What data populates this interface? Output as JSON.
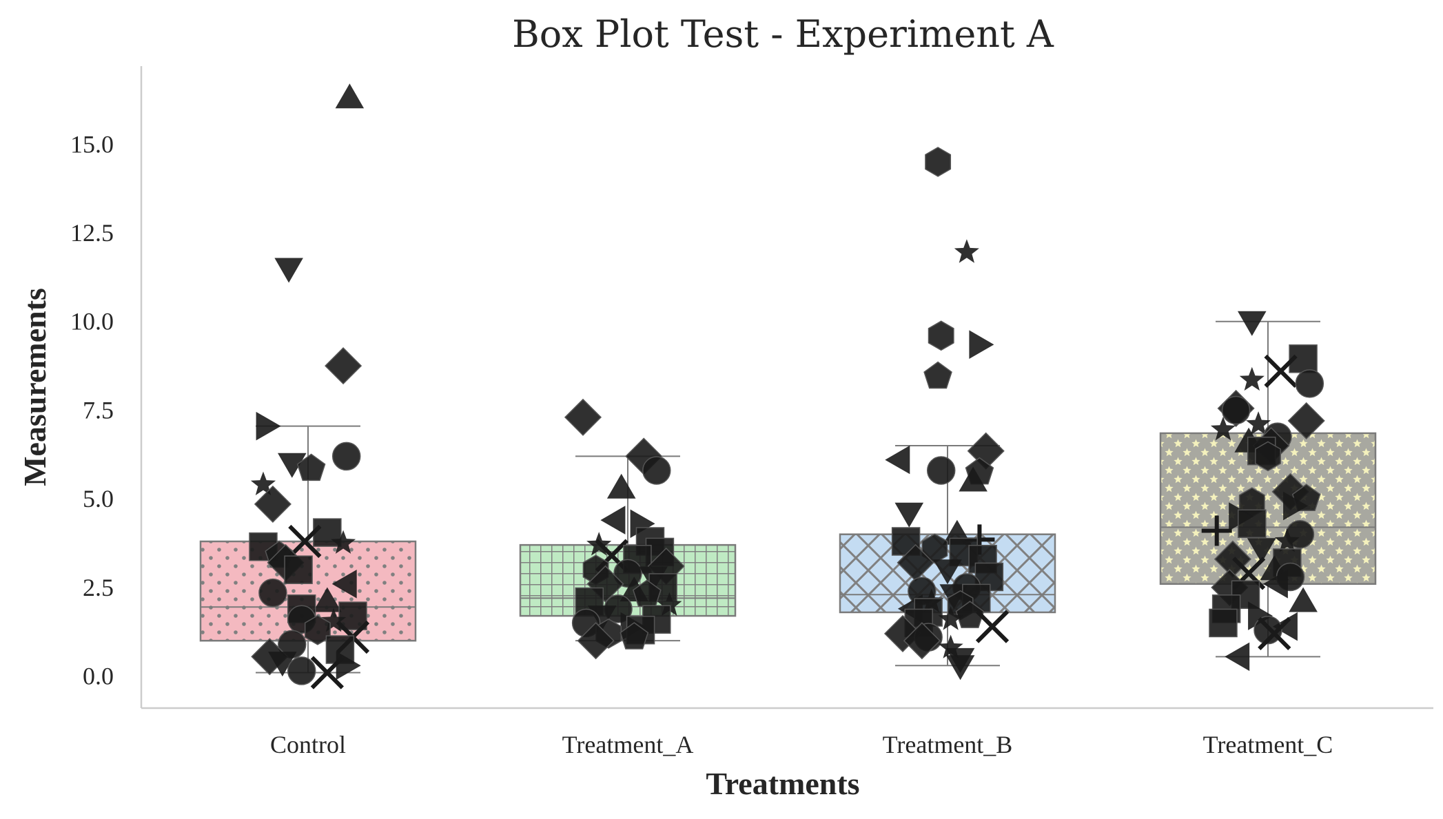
{
  "chart_data": {
    "type": "box",
    "title": "Box Plot Test - Experiment A",
    "xlabel": "Treatments",
    "ylabel": "Measurements",
    "ylim": [
      -0.9,
      17.2
    ],
    "yticks": [
      "0.0",
      "2.5",
      "5.0",
      "7.5",
      "10.0",
      "12.5",
      "15.0"
    ],
    "grid": false,
    "categories": [
      "Control",
      "Treatment_A",
      "Treatment_B",
      "Treatment_C"
    ],
    "box_colors": [
      "#f4b9c0",
      "#bfeac3",
      "#c4dcf2",
      "#f4f1bd"
    ],
    "box_patterns": [
      "dots",
      "grid",
      "crosshatch",
      "stars"
    ],
    "point_color": "#1a1a1a",
    "boxes": [
      {
        "category": "Control",
        "whisker_low": 0.1,
        "q1": 1.0,
        "median": 1.95,
        "q3": 3.8,
        "whisker_high": 7.05
      },
      {
        "category": "Treatment_A",
        "whisker_low": 1.0,
        "q1": 1.7,
        "median": 2.2,
        "q3": 3.7,
        "whisker_high": 6.2
      },
      {
        "category": "Treatment_B",
        "whisker_low": 0.3,
        "q1": 1.8,
        "median": 2.3,
        "q3": 4.0,
        "whisker_high": 6.5
      },
      {
        "category": "Treatment_C",
        "whisker_low": 0.55,
        "q1": 2.6,
        "median": 4.2,
        "q3": 6.85,
        "whisker_high": 10.0
      }
    ],
    "points": [
      {
        "category": "Control",
        "values": [
          16.3,
          11.5,
          8.75,
          7.05,
          6.2,
          6.0,
          5.85,
          5.4,
          4.85,
          4.05,
          3.8,
          3.75,
          3.65,
          3.4,
          3.2,
          3.0,
          2.6,
          2.35,
          2.1,
          1.9,
          1.7,
          1.6,
          1.55,
          1.3,
          1.1,
          0.9,
          0.75,
          0.55,
          0.4,
          0.3,
          0.15,
          0.1
        ],
        "jitter": [
          0.13,
          -0.06,
          0.11,
          -0.13,
          0.12,
          -0.05,
          0.01,
          -0.14,
          -0.11,
          0.06,
          -0.01,
          0.11,
          -0.14,
          -0.09,
          -0.07,
          -0.03,
          0.12,
          -0.11,
          0.06,
          -0.02,
          0.14,
          -0.02,
          0.08,
          0.03,
          0.14,
          -0.05,
          0.1,
          -0.12,
          -0.08,
          0.12,
          -0.02,
          0.06
        ],
        "markers": [
          "triangle-up",
          "triangle-down",
          "diamond",
          "triangle-right",
          "circle",
          "triangle-down",
          "pentagon",
          "star",
          "diamond",
          "square",
          "x",
          "star",
          "square",
          "pentagon",
          "diamond",
          "square",
          "triangle-left",
          "circle",
          "triangle-up",
          "square",
          "square",
          "circle",
          "star",
          "hexagon",
          "x",
          "circle",
          "square",
          "diamond",
          "triangle-down",
          "triangle-right",
          "circle",
          "x"
        ]
      },
      {
        "category": "Treatment_A",
        "values": [
          7.3,
          6.2,
          5.8,
          5.3,
          4.4,
          4.3,
          3.8,
          3.7,
          3.5,
          3.4,
          3.3,
          3.1,
          3.0,
          2.9,
          2.8,
          2.6,
          2.5,
          2.4,
          2.3,
          2.1,
          2.0,
          1.9,
          1.7,
          1.6,
          1.5,
          1.4,
          1.3,
          1.2,
          1.1,
          1.0
        ],
        "jitter": [
          -0.14,
          0.05,
          0.09,
          -0.02,
          -0.04,
          0.04,
          0.07,
          -0.09,
          0.1,
          -0.05,
          0.03,
          0.12,
          -0.1,
          0.0,
          0.08,
          -0.07,
          0.11,
          0.02,
          0.06,
          -0.12,
          0.13,
          -0.03,
          -0.08,
          0.09,
          -0.13,
          0.01,
          0.04,
          -0.06,
          0.02,
          -0.1
        ],
        "markers": [
          "diamond",
          "diamond",
          "circle",
          "triangle-up",
          "triangle-left",
          "triangle-right",
          "square",
          "star",
          "square",
          "x",
          "square",
          "diamond",
          "hexagon",
          "circle",
          "triangle-down",
          "diamond",
          "square",
          "triangle-up",
          "pentagon",
          "square",
          "star",
          "circle",
          "triangle-down",
          "square",
          "circle",
          "triangle-right",
          "square",
          "hexagon",
          "pentagon",
          "diamond"
        ]
      },
      {
        "category": "Treatment_B",
        "values": [
          14.5,
          11.95,
          9.6,
          9.35,
          8.45,
          6.35,
          6.1,
          5.8,
          5.75,
          5.5,
          4.6,
          4.0,
          3.85,
          3.8,
          3.6,
          3.5,
          3.3,
          3.2,
          3.0,
          2.8,
          2.5,
          2.4,
          2.3,
          2.2,
          2.1,
          2.0,
          1.9,
          1.8,
          1.7,
          1.6,
          1.5,
          1.4,
          1.2,
          1.1,
          1.0,
          0.8,
          0.5,
          0.3
        ],
        "jitter": [
          -0.03,
          0.06,
          -0.02,
          0.1,
          -0.03,
          0.12,
          -0.15,
          -0.02,
          0.1,
          0.08,
          -0.12,
          0.03,
          0.1,
          -0.13,
          -0.04,
          0.05,
          0.11,
          -0.1,
          0.0,
          0.13,
          0.06,
          -0.08,
          0.02,
          0.09,
          -0.05,
          0.04,
          -0.11,
          -0.06,
          0.07,
          0.01,
          -0.09,
          0.14,
          -0.14,
          -0.06,
          -0.08,
          0.01,
          0.04,
          0.04
        ],
        "markers": [
          "hexagon",
          "star",
          "hexagon",
          "triangle-right",
          "pentagon",
          "diamond",
          "triangle-left",
          "circle",
          "pentagon",
          "triangle-up",
          "triangle-down",
          "triangle-up",
          "plus",
          "square",
          "hexagon",
          "square",
          "square",
          "diamond",
          "triangle-down",
          "square",
          "circle",
          "circle",
          "triangle-down",
          "square",
          "star",
          "hexagon",
          "triangle-left",
          "square",
          "pentagon",
          "star",
          "square",
          "x",
          "diamond",
          "circle",
          "diamond",
          "star",
          "triangle-down",
          "triangle-down"
        ]
      },
      {
        "category": "Treatment_C",
        "values": [
          10.0,
          8.95,
          8.6,
          8.35,
          8.25,
          7.55,
          7.5,
          7.2,
          7.1,
          6.95,
          6.75,
          6.6,
          6.5,
          6.35,
          6.2,
          5.2,
          5.0,
          4.9,
          4.8,
          4.5,
          4.3,
          4.1,
          4.0,
          3.8,
          3.6,
          3.3,
          3.2,
          3.0,
          2.9,
          2.8,
          2.6,
          2.5,
          2.3,
          2.1,
          1.9,
          1.7,
          1.5,
          1.4,
          1.3,
          1.2,
          0.55
        ],
        "jitter": [
          -0.05,
          0.11,
          0.04,
          -0.05,
          0.13,
          -0.1,
          -0.1,
          0.12,
          -0.03,
          -0.14,
          0.03,
          -0.06,
          0.01,
          -0.02,
          0.0,
          0.07,
          0.12,
          -0.05,
          0.08,
          -0.09,
          -0.05,
          -0.16,
          0.1,
          0.06,
          -0.02,
          -0.11,
          0.06,
          0.02,
          -0.06,
          0.07,
          0.03,
          -0.12,
          -0.07,
          0.11,
          -0.13,
          -0.03,
          -0.14,
          0.06,
          0.0,
          0.02,
          -0.09
        ],
        "markers": [
          "triangle-down",
          "square",
          "x",
          "star",
          "circle",
          "diamond",
          "circle",
          "diamond",
          "star",
          "star",
          "circle",
          "triangle-up",
          "diamond",
          "square",
          "hexagon",
          "diamond",
          "pentagon",
          "hexagon",
          "triangle-right",
          "triangle-right",
          "square",
          "plus",
          "circle",
          "star",
          "triangle-down",
          "diamond",
          "square",
          "triangle-up",
          "x",
          "circle",
          "triangle-left",
          "diamond",
          "square",
          "triangle-up",
          "square",
          "triangle-right",
          "square",
          "triangle-left",
          "circle",
          "x",
          "triangle-left"
        ]
      }
    ]
  }
}
